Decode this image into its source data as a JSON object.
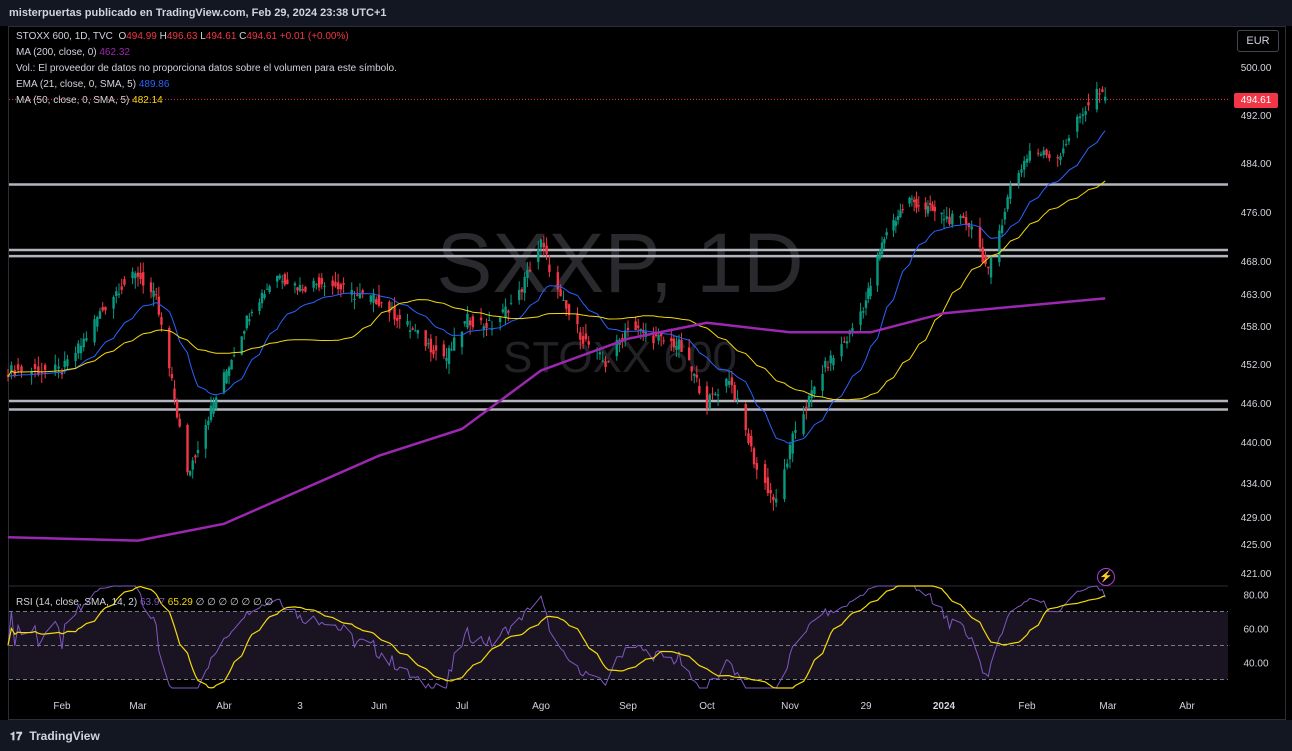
{
  "header": {
    "publisher_line": "misterpuertas publicado en TradingView.com, Feb 29, 2024 23:38 UTC+1"
  },
  "legend": {
    "symbol": "STOXX 600, 1D, TVC",
    "o_label": "O",
    "o_val": "494.99",
    "h_label": "H",
    "h_val": "496.63",
    "l_label": "L",
    "l_val": "494.61",
    "c_label": "C",
    "c_val": "494.61",
    "change": "+0.01 (+0.00%)",
    "ma200_label": "MA (200, close, 0)",
    "ma200_val": "462.32",
    "vol_note": "Vol.: El proveedor de datos no proporciona datos sobre el volumen para este símbolo.",
    "ema21_label": "EMA (21, close, 0, SMA, 5)",
    "ema21_val": "489.86",
    "ma50_label": "MA (50, close, 0, SMA, 5)",
    "ma50_val": "482.14",
    "rsi_label": "RSI (14, close, SMA, 14, 2)",
    "rsi_val": "63.97",
    "rsi_ma_val": "65.29",
    "rsi_extra": "∅ ∅ ∅ ∅ ∅ ∅ ∅"
  },
  "currency_button": "EUR",
  "last_price_badge": "494.61",
  "watermark": {
    "symbol": "SXXP, 1D",
    "name": "STOXX 600"
  },
  "footer": {
    "brand": "TradingView"
  },
  "colors": {
    "up": "#089981",
    "down": "#f23645",
    "ema21": "#2962ff",
    "ma50": "#f5d90a",
    "ma200": "#9c27b0",
    "rsi": "#7e57c2",
    "rsi_ma": "#f5d90a",
    "sr_lines": "#b2b5be"
  },
  "chart_data": {
    "type": "candlestick",
    "title": "STOXX 600, 1D, TVC",
    "x_tick_labels": [
      "Feb",
      "Mar",
      "Abr",
      "3",
      "Jun",
      "Jul",
      "Ago",
      "Sep",
      "Oct",
      "Nov",
      "29",
      "2024",
      "Feb",
      "Mar",
      "Abr"
    ],
    "y_ticks": [
      500.0,
      492.0,
      484.0,
      476.0,
      468.0,
      463.0,
      458.0,
      452.0,
      446.0,
      440.0,
      434.0,
      429.0,
      425.0,
      421.0
    ],
    "ylim": [
      419,
      503
    ],
    "horizontal_levels": [
      480.5,
      469.8,
      468.8,
      446.3,
      445.0
    ],
    "close_series": [
      {
        "date": "2023-02-01",
        "close": 451
      },
      {
        "date": "2023-02-08",
        "close": 455
      },
      {
        "date": "2023-02-15",
        "close": 460
      },
      {
        "date": "2023-02-22",
        "close": 464
      },
      {
        "date": "2023-03-01",
        "close": 466
      },
      {
        "date": "2023-03-08",
        "close": 462
      },
      {
        "date": "2023-03-14",
        "close": 449
      },
      {
        "date": "2023-03-20",
        "close": 435
      },
      {
        "date": "2023-03-27",
        "close": 443
      },
      {
        "date": "2023-04-05",
        "close": 452
      },
      {
        "date": "2023-04-14",
        "close": 461
      },
      {
        "date": "2023-04-24",
        "close": 466
      },
      {
        "date": "2023-05-03",
        "close": 464
      },
      {
        "date": "2023-05-12",
        "close": 465
      },
      {
        "date": "2023-05-22",
        "close": 463
      },
      {
        "date": "2023-06-01",
        "close": 462
      },
      {
        "date": "2023-06-12",
        "close": 458
      },
      {
        "date": "2023-06-20",
        "close": 455
      },
      {
        "date": "2023-06-27",
        "close": 453
      },
      {
        "date": "2023-07-05",
        "close": 459
      },
      {
        "date": "2023-07-14",
        "close": 458
      },
      {
        "date": "2023-07-24",
        "close": 463
      },
      {
        "date": "2023-08-01",
        "close": 471
      },
      {
        "date": "2023-08-08",
        "close": 462
      },
      {
        "date": "2023-08-16",
        "close": 456
      },
      {
        "date": "2023-08-24",
        "close": 452
      },
      {
        "date": "2023-09-01",
        "close": 458
      },
      {
        "date": "2023-09-12",
        "close": 456
      },
      {
        "date": "2023-09-21",
        "close": 455
      },
      {
        "date": "2023-10-02",
        "close": 446
      },
      {
        "date": "2023-10-10",
        "close": 450
      },
      {
        "date": "2023-10-20",
        "close": 436
      },
      {
        "date": "2023-10-27",
        "close": 431
      },
      {
        "date": "2023-11-03",
        "close": 442
      },
      {
        "date": "2023-11-13",
        "close": 451
      },
      {
        "date": "2023-11-22",
        "close": 456
      },
      {
        "date": "2023-11-29",
        "close": 462
      },
      {
        "date": "2023-12-08",
        "close": 473
      },
      {
        "date": "2023-12-18",
        "close": 478
      },
      {
        "date": "2024-01-03",
        "close": 475
      },
      {
        "date": "2024-01-12",
        "close": 474
      },
      {
        "date": "2024-01-18",
        "close": 466
      },
      {
        "date": "2024-01-26",
        "close": 480
      },
      {
        "date": "2024-02-02",
        "close": 486
      },
      {
        "date": "2024-02-12",
        "close": 485
      },
      {
        "date": "2024-02-19",
        "close": 491
      },
      {
        "date": "2024-02-26",
        "close": 496
      },
      {
        "date": "2024-02-29",
        "close": 494.61
      }
    ],
    "rsi": {
      "ylim": [
        25,
        85
      ],
      "y_ticks": [
        80.0,
        60.0,
        40.0
      ],
      "bands": [
        70,
        50,
        30
      ],
      "last": 63.97,
      "ma_last": 65.29
    }
  }
}
